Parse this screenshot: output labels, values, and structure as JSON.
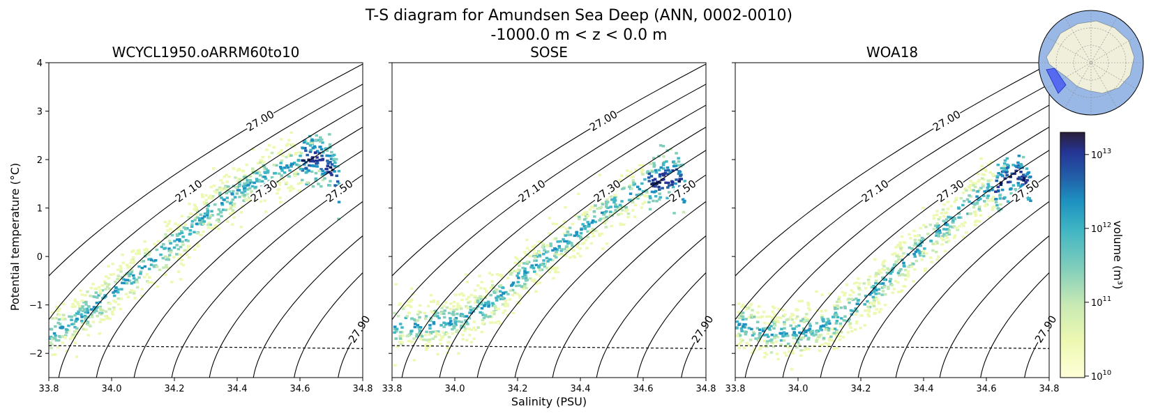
{
  "figure": {
    "title": "T-S diagram for Amundsen Sea Deep (ANN, 0002-0010)",
    "subtitle": "-1000.0 m < z < 0.0 m",
    "xlabel": "Salinity (PSU)",
    "ylabel": "Potential temperature (°C)",
    "colorbar_label": "volume (m³)",
    "colorbar_ticks": [
      {
        "value": 10,
        "base": "10",
        "exp": "10"
      },
      {
        "value": 11,
        "base": "10",
        "exp": "11"
      },
      {
        "value": 12,
        "base": "10",
        "exp": "12"
      },
      {
        "value": 13,
        "base": "10",
        "exp": "13"
      }
    ],
    "colors": {
      "cmap": [
        "#ffffd9",
        "#edf8b1",
        "#c7e9b4",
        "#7fcdbb",
        "#41b6c4",
        "#1d91c0",
        "#225ea8",
        "#253494",
        "#081d58"
      ],
      "cmap_dark": "#2b1f3a",
      "ocean": "#99b8e6",
      "land": "#efefdb",
      "region": "#4a5cf0"
    }
  },
  "chart_data": [
    {
      "type": "scatter",
      "panel": "WCYCL1950.oARRM60to10",
      "title": "WCYCL1950.oARRM60to10",
      "xlim": [
        33.8,
        34.8
      ],
      "ylim": [
        -2.5,
        4
      ],
      "xticks": [
        "33.8",
        "34.0",
        "34.2",
        "34.4",
        "34.6",
        "34.8"
      ],
      "yticks": [
        "4",
        "3",
        "2",
        "1",
        "0",
        "−1",
        "−2"
      ],
      "freezing_line": {
        "x": [
          33.8,
          34.8
        ],
        "y": [
          -1.84,
          -1.9
        ]
      },
      "density_contours": [
        "27.00",
        "27.10",
        "27.20",
        "27.30",
        "27.40",
        "27.50",
        "27.60",
        "27.70",
        "27.80",
        "27.90",
        "28.00"
      ],
      "distribution_ridge": {
        "salinity": [
          33.8,
          33.9,
          34.0,
          34.1,
          34.2,
          34.3,
          34.4,
          34.5,
          34.6,
          34.65,
          34.7,
          34.72
        ],
        "temperature": [
          -1.6,
          -1.2,
          -0.7,
          -0.2,
          0.3,
          0.9,
          1.4,
          1.75,
          2.0,
          2.1,
          1.8,
          1.3
        ]
      }
    },
    {
      "type": "scatter",
      "panel": "SOSE",
      "title": "SOSE",
      "xlim": [
        33.8,
        34.8
      ],
      "ylim": [
        -2.5,
        4
      ],
      "xticks": [
        "33.8",
        "34.0",
        "34.2",
        "34.4",
        "34.6",
        "34.8"
      ],
      "yticks": [
        "4",
        "3",
        "2",
        "1",
        "0",
        "−1",
        "−2"
      ],
      "freezing_line": {
        "x": [
          33.8,
          34.8
        ],
        "y": [
          -1.84,
          -1.9
        ]
      },
      "density_contours": [
        "27.00",
        "27.10",
        "27.20",
        "27.30",
        "27.40",
        "27.50",
        "27.60",
        "27.70",
        "27.80",
        "27.90",
        "28.00"
      ],
      "distribution_ridge": {
        "salinity": [
          33.8,
          33.9,
          34.0,
          34.1,
          34.2,
          34.3,
          34.4,
          34.5,
          34.6,
          34.7,
          34.73
        ],
        "temperature": [
          -1.4,
          -1.4,
          -1.3,
          -1.0,
          -0.4,
          0.1,
          0.6,
          1.1,
          1.5,
          1.7,
          1.4
        ]
      }
    },
    {
      "type": "scatter",
      "panel": "WOA18",
      "title": "WOA18",
      "xlim": [
        33.8,
        34.8
      ],
      "ylim": [
        -2.5,
        4
      ],
      "xticks": [
        "33.8",
        "34.0",
        "34.2",
        "34.4",
        "34.6",
        "34.8"
      ],
      "yticks": [
        "4",
        "3",
        "2",
        "1",
        "0",
        "−1",
        "−2"
      ],
      "freezing_line": {
        "x": [
          33.8,
          34.8
        ],
        "y": [
          -1.84,
          -1.9
        ]
      },
      "density_contours": [
        "27.00",
        "27.10",
        "27.20",
        "27.30",
        "27.40",
        "27.50",
        "27.60",
        "27.70",
        "27.80",
        "27.90",
        "28.00"
      ],
      "distribution_ridge": {
        "salinity": [
          33.8,
          33.9,
          34.0,
          34.1,
          34.2,
          34.3,
          34.4,
          34.5,
          34.6,
          34.7,
          34.74
        ],
        "temperature": [
          -1.35,
          -1.55,
          -1.55,
          -1.35,
          -0.9,
          -0.3,
          0.3,
          0.9,
          1.4,
          1.75,
          1.4
        ]
      }
    }
  ]
}
